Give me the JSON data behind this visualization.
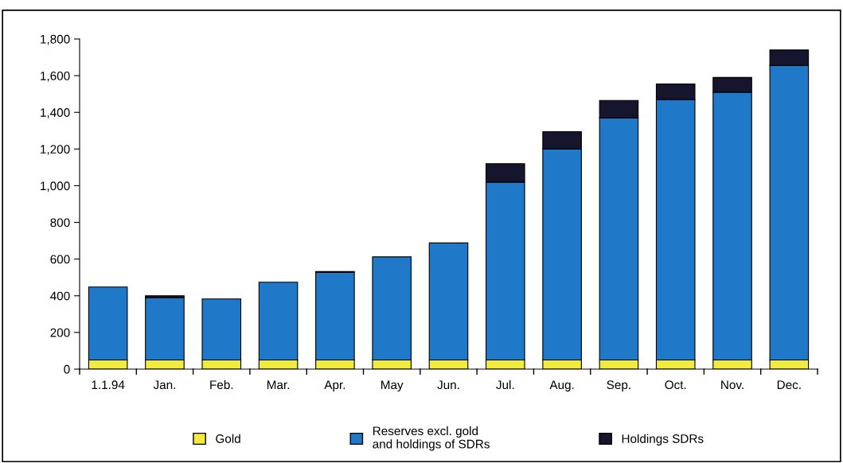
{
  "chart_data": {
    "type": "bar",
    "stacked": true,
    "categories": [
      "1.1.94",
      "Jan.",
      "Feb.",
      "Mar.",
      "Apr.",
      "May",
      "Jun.",
      "Jul.",
      "Aug.",
      "Sep.",
      "Oct.",
      "Nov.",
      "Dec."
    ],
    "series": [
      {
        "name": "Gold",
        "color": "#f2ea3c",
        "values": [
          50,
          50,
          50,
          50,
          50,
          50,
          50,
          50,
          50,
          50,
          50,
          50,
          50
        ]
      },
      {
        "name": "Reserves excl. gold\nand holdings of SDRs",
        "color": "#1f78c8",
        "values": [
          398,
          340,
          333,
          424,
          477,
          562,
          638,
          970,
          1150,
          1320,
          1420,
          1460,
          1605
        ]
      },
      {
        "name": "Holdings SDRs",
        "color": "#15152e",
        "values": [
          null,
          10,
          null,
          null,
          5,
          null,
          null,
          100,
          95,
          95,
          85,
          80,
          85
        ]
      }
    ],
    "ylim": [
      0,
      1800
    ],
    "yticks": [
      {
        "value": 0,
        "label": "0"
      },
      {
        "value": 200,
        "label": "200"
      },
      {
        "value": 400,
        "label": "400"
      },
      {
        "value": 600,
        "label": "600"
      },
      {
        "value": 800,
        "label": "800"
      },
      {
        "value": 1000,
        "label": "1,000"
      },
      {
        "value": 1200,
        "label": "1,200"
      },
      {
        "value": 1400,
        "label": "1,400"
      },
      {
        "value": 1600,
        "label": "1,600"
      },
      {
        "value": 1800,
        "label": "1,800"
      }
    ],
    "grid": false,
    "legend": "bottom"
  }
}
